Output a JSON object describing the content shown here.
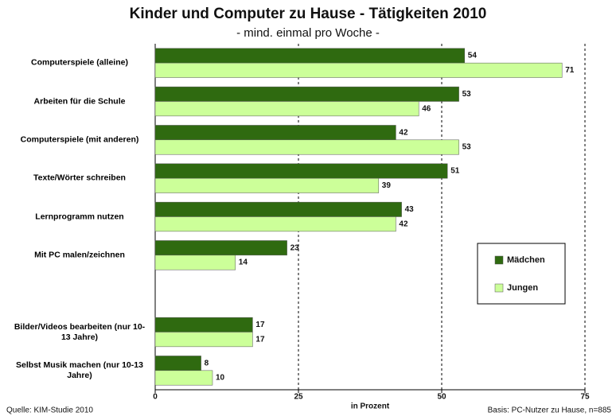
{
  "chart_data": {
    "type": "bar",
    "orientation": "horizontal",
    "title": "Kinder und Computer zu Hause - Tätigkeiten 2010",
    "subtitle": "- mind. einmal pro Woche -",
    "x_label": "in Prozent",
    "source": "Quelle: KIM-Studie 2010",
    "note": "Basis: PC-Nutzer zu Hause, n=885",
    "categories": [
      "Computerspiele (alleine)",
      "Arbeiten für die Schule",
      "Computerspiele (mit anderen)",
      "Texte/Wörter schreiben",
      "Lernprogramm nutzen",
      "Mit PC malen/zeichnen",
      null,
      "Bilder/Videos bearbeiten (nur 10-13 Jahre)",
      "Selbst Musik machen (nur 10-13 Jahre)"
    ],
    "series": [
      {
        "name": "Mädchen",
        "color": "#2f6a10",
        "values": [
          54,
          53,
          42,
          51,
          43,
          23,
          null,
          17,
          8
        ]
      },
      {
        "name": "Jungen",
        "color": "#ccff99",
        "values": [
          71,
          46,
          53,
          39,
          42,
          14,
          null,
          17,
          10
        ]
      }
    ],
    "xlim": [
      0,
      75
    ],
    "xticks": [
      0,
      25,
      50,
      75
    ],
    "grid": true,
    "legend": "right"
  }
}
